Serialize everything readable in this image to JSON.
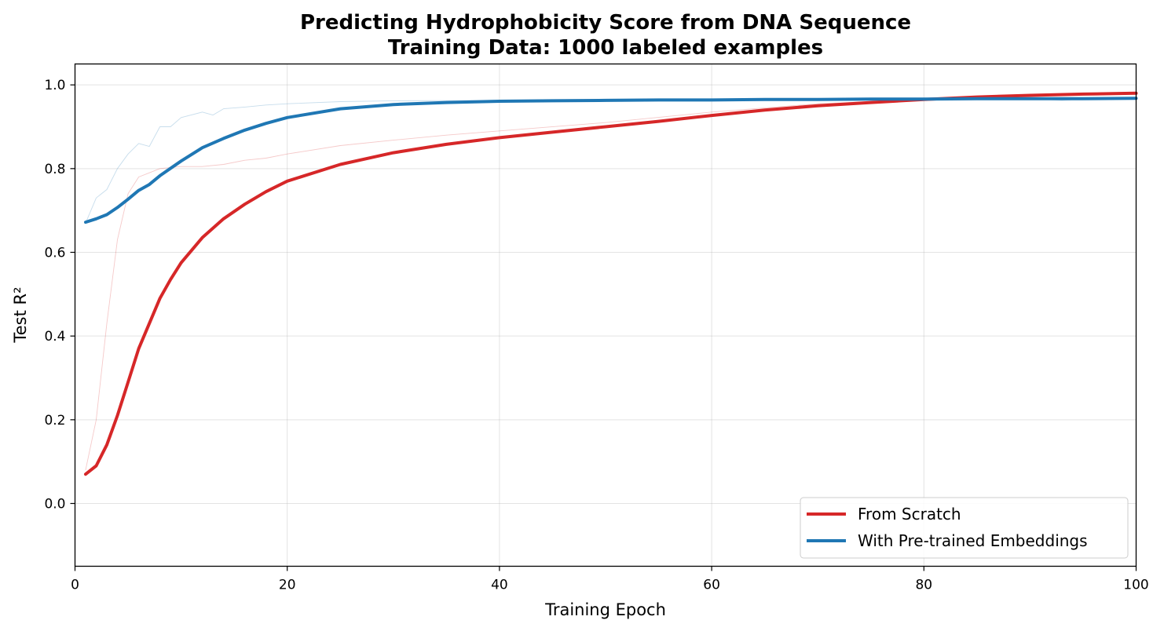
{
  "chart_data": {
    "type": "line",
    "title": "Predicting Hydrophobicity Score from DNA Sequence",
    "subtitle": "Training Data: 1000 labeled examples",
    "xlabel": "Training Epoch",
    "ylabel": "Test R²",
    "xlim": [
      0,
      100
    ],
    "ylim": [
      -0.15,
      1.05
    ],
    "xticks": [
      0,
      20,
      40,
      60,
      80,
      100
    ],
    "xtick_labels": [
      "0",
      "20",
      "40",
      "60",
      "80",
      "100"
    ],
    "yticks": [
      0.0,
      0.2,
      0.4,
      0.6,
      0.8,
      1.0
    ],
    "ytick_labels": [
      "0.0",
      "0.2",
      "0.4",
      "0.6",
      "0.8",
      "1.0"
    ],
    "grid": true,
    "legend_position": "lower-right",
    "series": [
      {
        "name": "From Scratch",
        "color": "#d62728",
        "x": [
          1,
          2,
          3,
          4,
          5,
          6,
          7,
          8,
          9,
          10,
          12,
          14,
          16,
          18,
          20,
          25,
          30,
          35,
          40,
          45,
          50,
          55,
          60,
          65,
          70,
          75,
          80,
          85,
          90,
          95,
          100
        ],
        "values": [
          0.07,
          0.09,
          0.14,
          0.21,
          0.29,
          0.37,
          0.43,
          0.49,
          0.535,
          0.575,
          0.635,
          0.68,
          0.715,
          0.745,
          0.77,
          0.81,
          0.838,
          0.858,
          0.874,
          0.887,
          0.9,
          0.913,
          0.927,
          0.94,
          0.95,
          0.958,
          0.965,
          0.971,
          0.975,
          0.978,
          0.98
        ]
      },
      {
        "name": "With Pre-trained Embeddings",
        "color": "#1f77b4",
        "x": [
          1,
          2,
          3,
          4,
          5,
          6,
          7,
          8,
          10,
          12,
          14,
          16,
          18,
          20,
          25,
          30,
          35,
          40,
          45,
          50,
          55,
          60,
          65,
          70,
          75,
          80,
          85,
          90,
          95,
          100
        ],
        "values": [
          0.672,
          0.68,
          0.69,
          0.707,
          0.727,
          0.748,
          0.762,
          0.783,
          0.818,
          0.85,
          0.872,
          0.892,
          0.908,
          0.922,
          0.943,
          0.953,
          0.958,
          0.961,
          0.962,
          0.963,
          0.964,
          0.964,
          0.965,
          0.965,
          0.966,
          0.966,
          0.967,
          0.967,
          0.967,
          0.968
        ]
      },
      {
        "name": "",
        "color": "#d62728",
        "faint": true,
        "x": [
          1,
          2,
          3,
          4,
          5,
          6,
          7,
          8,
          10,
          12,
          14,
          16,
          18,
          20,
          25,
          30,
          35,
          40,
          50,
          60,
          70,
          80,
          90,
          100
        ],
        "values": [
          0.08,
          0.2,
          0.43,
          0.63,
          0.74,
          0.78,
          0.79,
          0.8,
          0.805,
          0.805,
          0.81,
          0.82,
          0.825,
          0.835,
          0.855,
          0.868,
          0.88,
          0.89,
          0.91,
          0.935,
          0.955,
          0.965,
          0.975,
          0.98
        ]
      },
      {
        "name": "",
        "color": "#1f77b4",
        "faint": true,
        "x": [
          1,
          2,
          3,
          4,
          5,
          6,
          7,
          8,
          9,
          10,
          12,
          13,
          14,
          16,
          18,
          20,
          25,
          30,
          40,
          50,
          60,
          70,
          80,
          90,
          93,
          95,
          100
        ],
        "values": [
          0.67,
          0.73,
          0.75,
          0.8,
          0.835,
          0.86,
          0.853,
          0.9,
          0.9,
          0.922,
          0.935,
          0.928,
          0.943,
          0.947,
          0.952,
          0.955,
          0.96,
          0.962,
          0.963,
          0.964,
          0.965,
          0.966,
          0.966,
          0.967,
          0.963,
          0.966,
          0.968
        ]
      }
    ]
  }
}
